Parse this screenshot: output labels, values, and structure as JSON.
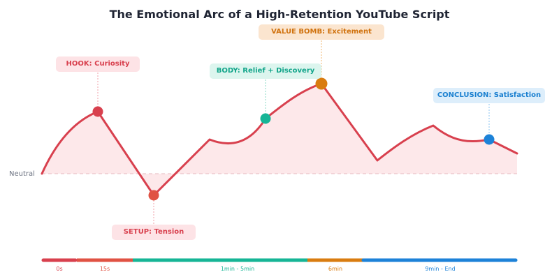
{
  "title": "The Emotional Arc of a High-Retention YouTube Script",
  "baseline_label": "Neutral",
  "colors": {
    "curve": "#d8404e",
    "fill": "#fde8ea",
    "baseline": "#e6b8bf",
    "hook": "#d8404e",
    "setup": "#e05243",
    "body": "#16b596",
    "value": "#d97c10",
    "conclusion": "#1d82d8"
  },
  "callouts": {
    "hook": "HOOK: Curiosity",
    "setup": "SETUP: Tension",
    "body": "BODY: Relief + Discovery",
    "value": "VALUE BOMB: Excitement",
    "conclusion": "CONCLUSION: Satisfaction"
  },
  "timeline": {
    "labels": [
      "0s",
      "15s",
      "1min - 5min",
      "6min",
      "9min - End"
    ]
  }
}
